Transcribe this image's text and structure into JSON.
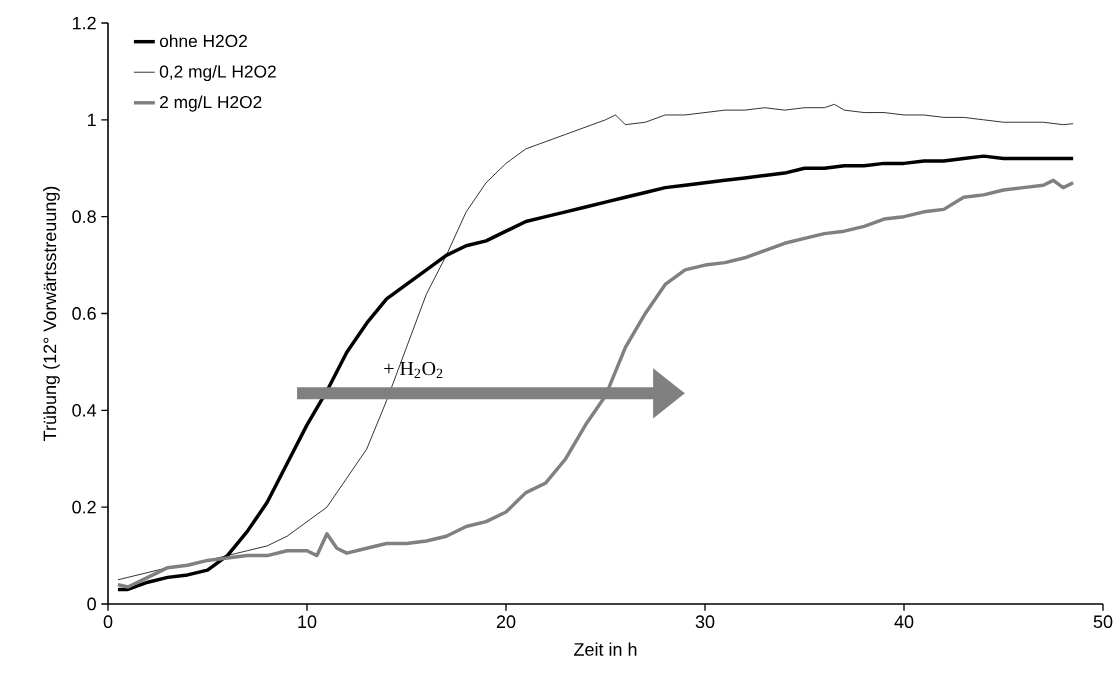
{
  "chart_data": {
    "type": "line",
    "xlabel": "Zeit in h",
    "ylabel": "Trübung (12° Vorwärtsstreuung)",
    "xlim": [
      0,
      50
    ],
    "ylim": [
      0,
      1.2
    ],
    "xticks": [
      0,
      10,
      20,
      30,
      40,
      50
    ],
    "yticks": [
      0,
      0.2,
      0.4,
      0.6,
      0.8,
      1,
      1.2
    ],
    "legend": "top left",
    "grid": false,
    "marker": "none",
    "annotations": [
      "+ H$_{2}$O$_{2}$"
    ],
    "series": [
      {
        "name": "ohne H2O2",
        "color": "#000000",
        "x": [
          0.5,
          1,
          2,
          3,
          4,
          5,
          6,
          7,
          8,
          9,
          10,
          11,
          12,
          13,
          14,
          15,
          16,
          17,
          18,
          19,
          20,
          21,
          22,
          23,
          24,
          25,
          26,
          27,
          28,
          29,
          30,
          31,
          32,
          33,
          34,
          35,
          36,
          37,
          38,
          39,
          40,
          41,
          42,
          43,
          44,
          45,
          46,
          47,
          48,
          48.5
        ],
        "values": [
          0.03,
          0.03,
          0.045,
          0.055,
          0.06,
          0.07,
          0.1,
          0.15,
          0.21,
          0.29,
          0.37,
          0.44,
          0.52,
          0.58,
          0.63,
          0.66,
          0.69,
          0.72,
          0.74,
          0.75,
          0.77,
          0.79,
          0.8,
          0.81,
          0.82,
          0.83,
          0.84,
          0.85,
          0.86,
          0.865,
          0.87,
          0.875,
          0.88,
          0.885,
          0.89,
          0.9,
          0.9,
          0.905,
          0.905,
          0.91,
          0.91,
          0.915,
          0.915,
          0.92,
          0.925,
          0.92,
          0.92,
          0.92,
          0.92,
          0.92
        ]
      },
      {
        "name": "0,2 mg/L H2O2",
        "color": "#000000",
        "x": [
          0.5,
          1,
          2,
          3,
          4,
          5,
          6,
          7,
          8,
          9,
          10,
          11,
          12,
          13,
          14,
          15,
          16,
          17,
          18,
          19,
          20,
          21,
          22,
          23,
          24,
          25,
          25.5,
          26,
          27,
          28,
          29,
          30,
          31,
          32,
          33,
          34,
          35,
          36,
          36.5,
          37,
          38,
          39,
          40,
          41,
          42,
          43,
          44,
          45,
          46,
          47,
          48,
          48.5
        ],
        "values": [
          0.05,
          0.055,
          0.065,
          0.075,
          0.08,
          0.09,
          0.1,
          0.11,
          0.12,
          0.14,
          0.17,
          0.2,
          0.26,
          0.32,
          0.42,
          0.53,
          0.64,
          0.72,
          0.81,
          0.87,
          0.91,
          0.94,
          0.955,
          0.97,
          0.985,
          1.0,
          1.01,
          0.99,
          0.995,
          1.01,
          1.01,
          1.015,
          1.02,
          1.02,
          1.025,
          1.02,
          1.025,
          1.025,
          1.032,
          1.02,
          1.015,
          1.015,
          1.01,
          1.01,
          1.005,
          1.005,
          1.0,
          0.995,
          0.995,
          0.995,
          0.99,
          0.992
        ]
      },
      {
        "name": "2 mg/L H2O2",
        "color": "#808080",
        "x": [
          0.5,
          1,
          2,
          3,
          4,
          5,
          6,
          7,
          8,
          9,
          10,
          10.5,
          11,
          11.5,
          12,
          13,
          14,
          15,
          16,
          17,
          18,
          19,
          20,
          20.5,
          21,
          22,
          23,
          24,
          25,
          26,
          27,
          28,
          29,
          30,
          31,
          32,
          33,
          34,
          35,
          36,
          37,
          38,
          39,
          40,
          41,
          42,
          43,
          44,
          45,
          46,
          47,
          47.5,
          48,
          48.5
        ],
        "values": [
          0.04,
          0.035,
          0.055,
          0.075,
          0.08,
          0.09,
          0.095,
          0.1,
          0.1,
          0.11,
          0.11,
          0.1,
          0.145,
          0.115,
          0.105,
          0.115,
          0.125,
          0.125,
          0.13,
          0.14,
          0.16,
          0.17,
          0.19,
          0.21,
          0.23,
          0.25,
          0.3,
          0.37,
          0.43,
          0.53,
          0.6,
          0.66,
          0.69,
          0.7,
          0.705,
          0.715,
          0.73,
          0.745,
          0.755,
          0.765,
          0.77,
          0.78,
          0.795,
          0.8,
          0.81,
          0.815,
          0.84,
          0.845,
          0.855,
          0.86,
          0.865,
          0.875,
          0.86,
          0.87
        ]
      }
    ]
  }
}
